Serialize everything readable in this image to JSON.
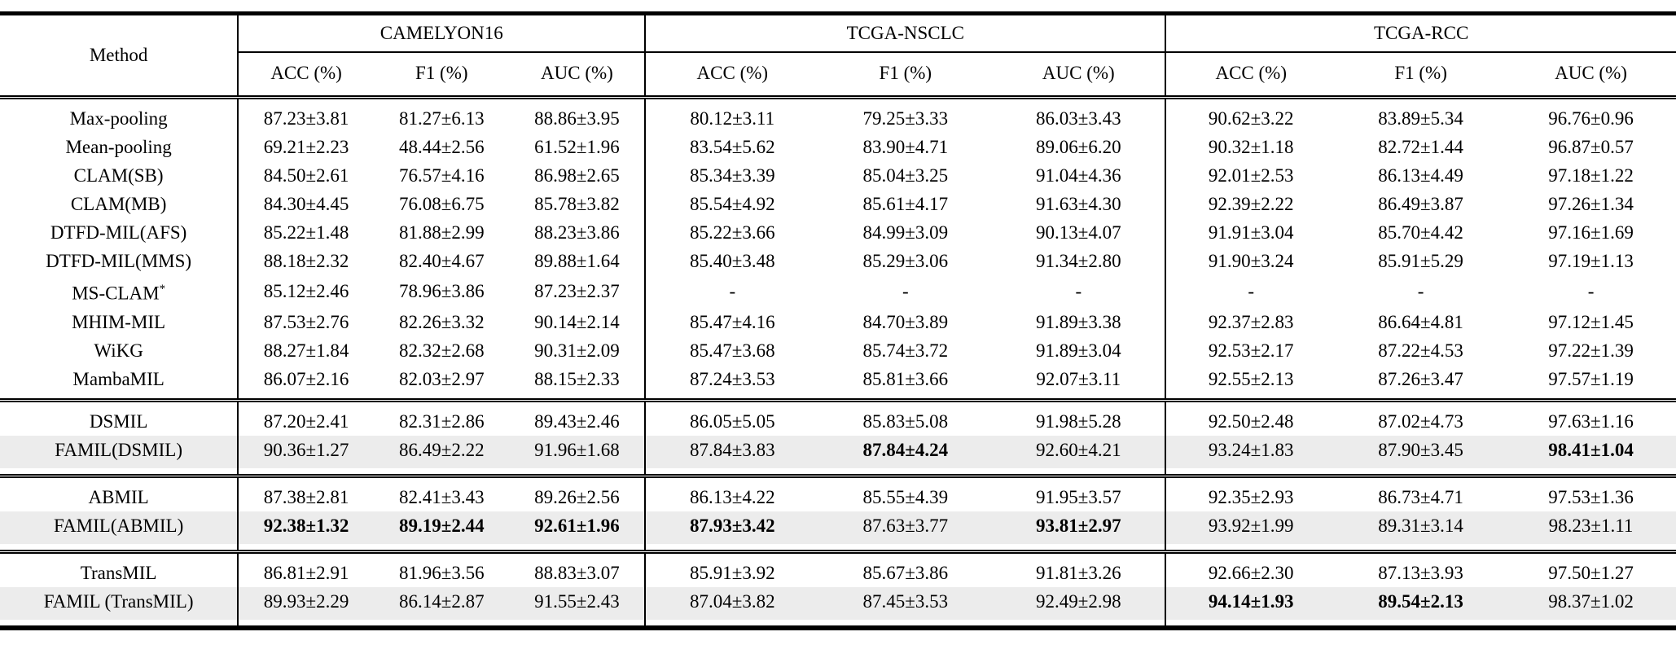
{
  "colors": {
    "background": "#ffffff",
    "text": "#000000",
    "rule": "#000000",
    "row_highlight": "#ececec"
  },
  "table": {
    "method_header": "Method",
    "groups": [
      {
        "label": "CAMELYON16",
        "subcols": [
          "ACC (%)",
          "F1 (%)",
          "AUC (%)"
        ]
      },
      {
        "label": "TCGA-NSCLC",
        "subcols": [
          "ACC (%)",
          "F1 (%)",
          "AUC (%)"
        ]
      },
      {
        "label": "TCGA-RCC",
        "subcols": [
          "ACC (%)",
          "F1 (%)",
          "AUC (%)"
        ]
      }
    ],
    "sections": [
      {
        "rows": [
          {
            "method": "Max-pooling",
            "highlight": false,
            "bold": [],
            "values": [
              "87.23±3.81",
              "81.27±6.13",
              "88.86±3.95",
              "80.12±3.11",
              "79.25±3.33",
              "86.03±3.43",
              "90.62±3.22",
              "83.89±5.34",
              "96.76±0.96"
            ]
          },
          {
            "method": "Mean-pooling",
            "highlight": false,
            "bold": [],
            "values": [
              "69.21±2.23",
              "48.44±2.56",
              "61.52±1.96",
              "83.54±5.62",
              "83.90±4.71",
              "89.06±6.20",
              "90.32±1.18",
              "82.72±1.44",
              "96.87±0.57"
            ]
          },
          {
            "method": "CLAM(SB)",
            "highlight": false,
            "bold": [],
            "values": [
              "84.50±2.61",
              "76.57±4.16",
              "86.98±2.65",
              "85.34±3.39",
              "85.04±3.25",
              "91.04±4.36",
              "92.01±2.53",
              "86.13±4.49",
              "97.18±1.22"
            ]
          },
          {
            "method": "CLAM(MB)",
            "highlight": false,
            "bold": [],
            "values": [
              "84.30±4.45",
              "76.08±6.75",
              "85.78±3.82",
              "85.54±4.92",
              "85.61±4.17",
              "91.63±4.30",
              "92.39±2.22",
              "86.49±3.87",
              "97.26±1.34"
            ]
          },
          {
            "method": "DTFD-MIL(AFS)",
            "highlight": false,
            "bold": [],
            "values": [
              "85.22±1.48",
              "81.88±2.99",
              "88.23±3.86",
              "85.22±3.66",
              "84.99±3.09",
              "90.13±4.07",
              "91.91±3.04",
              "85.70±4.42",
              "97.16±1.69"
            ]
          },
          {
            "method": "DTFD-MIL(MMS)",
            "highlight": false,
            "bold": [],
            "values": [
              "88.18±2.32",
              "82.40±4.67",
              "89.88±1.64",
              "85.40±3.48",
              "85.29±3.06",
              "91.34±2.80",
              "91.90±3.24",
              "85.91±5.29",
              "97.19±1.13"
            ]
          },
          {
            "method": "MS-CLAM*",
            "highlight": false,
            "bold": [],
            "values": [
              "85.12±2.46",
              "78.96±3.86",
              "87.23±2.37",
              "-",
              "-",
              "-",
              "-",
              "-",
              "-"
            ]
          },
          {
            "method": "MHIM-MIL",
            "highlight": false,
            "bold": [],
            "values": [
              "87.53±2.76",
              "82.26±3.32",
              "90.14±2.14",
              "85.47±4.16",
              "84.70±3.89",
              "91.89±3.38",
              "92.37±2.83",
              "86.64±4.81",
              "97.12±1.45"
            ]
          },
          {
            "method": "WiKG",
            "highlight": false,
            "bold": [],
            "values": [
              "88.27±1.84",
              "82.32±2.68",
              "90.31±2.09",
              "85.47±3.68",
              "85.74±3.72",
              "91.89±3.04",
              "92.53±2.17",
              "87.22±4.53",
              "97.22±1.39"
            ]
          },
          {
            "method": "MambaMIL",
            "highlight": false,
            "bold": [],
            "values": [
              "86.07±2.16",
              "82.03±2.97",
              "88.15±2.33",
              "87.24±3.53",
              "85.81±3.66",
              "92.07±3.11",
              "92.55±2.13",
              "87.26±3.47",
              "97.57±1.19"
            ]
          }
        ]
      },
      {
        "rows": [
          {
            "method": "DSMIL",
            "highlight": false,
            "bold": [],
            "values": [
              "87.20±2.41",
              "82.31±2.86",
              "89.43±2.46",
              "86.05±5.05",
              "85.83±5.08",
              "91.98±5.28",
              "92.50±2.48",
              "87.02±4.73",
              "97.63±1.16"
            ]
          },
          {
            "method": "FAMIL(DSMIL)",
            "highlight": true,
            "bold": [
              4,
              8
            ],
            "values": [
              "90.36±1.27",
              "86.49±2.22",
              "91.96±1.68",
              "87.84±3.83",
              "87.84±4.24",
              "92.60±4.21",
              "93.24±1.83",
              "87.90±3.45",
              "98.41±1.04"
            ]
          }
        ]
      },
      {
        "rows": [
          {
            "method": "ABMIL",
            "highlight": false,
            "bold": [],
            "values": [
              "87.38±2.81",
              "82.41±3.43",
              "89.26±2.56",
              "86.13±4.22",
              "85.55±4.39",
              "91.95±3.57",
              "92.35±2.93",
              "86.73±4.71",
              "97.53±1.36"
            ]
          },
          {
            "method": "FAMIL(ABMIL)",
            "highlight": true,
            "bold": [
              0,
              1,
              2,
              3,
              5
            ],
            "values": [
              "92.38±1.32",
              "89.19±2.44",
              "92.61±1.96",
              "87.93±3.42",
              "87.63±3.77",
              "93.81±2.97",
              "93.92±1.99",
              "89.31±3.14",
              "98.23±1.11"
            ]
          }
        ]
      },
      {
        "rows": [
          {
            "method": "TransMIL",
            "highlight": false,
            "bold": [],
            "values": [
              "86.81±2.91",
              "81.96±3.56",
              "88.83±3.07",
              "85.91±3.92",
              "85.67±3.86",
              "91.81±3.26",
              "92.66±2.30",
              "87.13±3.93",
              "97.50±1.27"
            ]
          },
          {
            "method": "FAMIL (TransMIL)",
            "highlight": true,
            "bold": [
              6,
              7
            ],
            "values": [
              "89.93±2.29",
              "86.14±2.87",
              "91.55±2.43",
              "87.04±3.82",
              "87.45±3.53",
              "92.49±2.98",
              "94.14±1.93",
              "89.54±2.13",
              "98.37±1.02"
            ]
          }
        ]
      }
    ]
  }
}
